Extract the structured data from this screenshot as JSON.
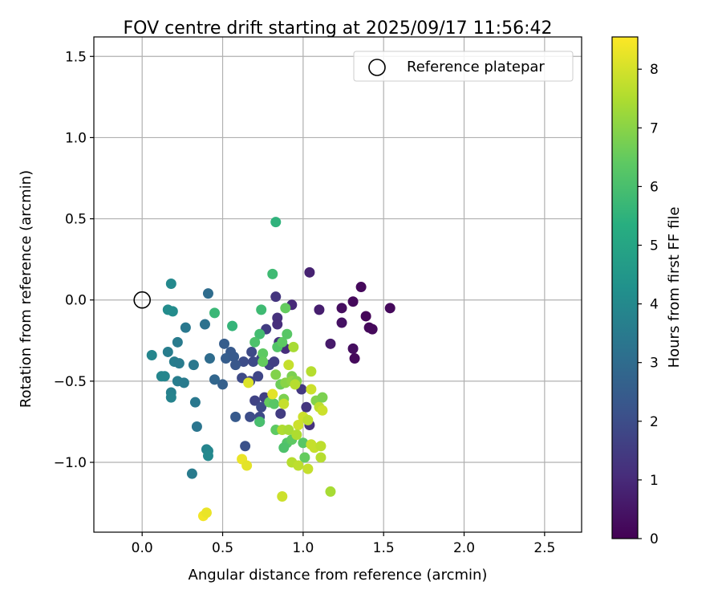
{
  "chart_data": {
    "type": "scatter",
    "title": "FOV centre drift starting at 2025/09/17 11:56:42",
    "xlabel": "Angular distance from reference (arcmin)",
    "ylabel": "Rotation from reference (arcmin)",
    "xlim": [
      -0.3,
      2.73
    ],
    "ylim": [
      -1.43,
      1.62
    ],
    "xticks": [
      0.0,
      0.5,
      1.0,
      1.5,
      2.0,
      2.5
    ],
    "xtick_labels": [
      "0.0",
      "0.5",
      "1.0",
      "1.5",
      "2.0",
      "2.5"
    ],
    "yticks": [
      -1.0,
      -0.5,
      0.0,
      0.5,
      1.0,
      1.5
    ],
    "ytick_labels": [
      "−1.0",
      "−0.5",
      "0.0",
      "0.5",
      "1.0",
      "1.5"
    ],
    "grid": true,
    "legend": {
      "position": "top-right",
      "entries": [
        {
          "label": "Reference platepar",
          "marker": "open-circle"
        }
      ]
    },
    "reference_point": {
      "x": 0.0,
      "y": 0.0
    },
    "colorbar": {
      "label": "Hours from first FF file",
      "range": [
        0,
        8.55
      ],
      "ticks": [
        0,
        1,
        2,
        3,
        4,
        5,
        6,
        7,
        8
      ],
      "tick_labels": [
        "0",
        "1",
        "2",
        "3",
        "4",
        "5",
        "6",
        "7",
        "8"
      ],
      "colormap": "viridis"
    },
    "points": [
      {
        "x": 1.31,
        "y": -0.01,
        "t": 0.2
      },
      {
        "x": 1.36,
        "y": 0.08,
        "t": 0.2
      },
      {
        "x": 1.39,
        "y": -0.1,
        "t": 0.1
      },
      {
        "x": 1.41,
        "y": -0.17,
        "t": 0.2
      },
      {
        "x": 1.43,
        "y": -0.18,
        "t": 0.2
      },
      {
        "x": 1.54,
        "y": -0.05,
        "t": 0.2
      },
      {
        "x": 1.24,
        "y": -0.05,
        "t": 0.3
      },
      {
        "x": 1.24,
        "y": -0.14,
        "t": 0.4
      },
      {
        "x": 1.31,
        "y": -0.3,
        "t": 0.3
      },
      {
        "x": 1.32,
        "y": -0.36,
        "t": 0.2
      },
      {
        "x": 1.17,
        "y": -0.27,
        "t": 0.6
      },
      {
        "x": 1.1,
        "y": -0.06,
        "t": 0.7
      },
      {
        "x": 1.04,
        "y": 0.17,
        "t": 0.8
      },
      {
        "x": 0.93,
        "y": -0.03,
        "t": 1.0
      },
      {
        "x": 0.83,
        "y": 0.02,
        "t": 1.3
      },
      {
        "x": 0.84,
        "y": -0.11,
        "t": 1.2
      },
      {
        "x": 0.84,
        "y": -0.15,
        "t": 1.1
      },
      {
        "x": 0.77,
        "y": -0.18,
        "t": 1.5
      },
      {
        "x": 0.89,
        "y": -0.3,
        "t": 1.1
      },
      {
        "x": 0.85,
        "y": -0.26,
        "t": 1.2
      },
      {
        "x": 0.79,
        "y": -0.4,
        "t": 1.7
      },
      {
        "x": 0.82,
        "y": -0.38,
        "t": 1.6
      },
      {
        "x": 0.74,
        "y": -0.36,
        "t": 1.8
      },
      {
        "x": 0.68,
        "y": -0.32,
        "t": 1.9
      },
      {
        "x": 0.63,
        "y": -0.38,
        "t": 2.0
      },
      {
        "x": 0.69,
        "y": -0.38,
        "t": 1.9
      },
      {
        "x": 0.72,
        "y": -0.47,
        "t": 1.8
      },
      {
        "x": 0.62,
        "y": -0.48,
        "t": 1.9
      },
      {
        "x": 0.67,
        "y": -0.5,
        "t": 1.8
      },
      {
        "x": 0.7,
        "y": -0.62,
        "t": 1.7
      },
      {
        "x": 0.74,
        "y": -0.66,
        "t": 1.9
      },
      {
        "x": 0.76,
        "y": -0.6,
        "t": 1.6
      },
      {
        "x": 0.86,
        "y": -0.7,
        "t": 1.5
      },
      {
        "x": 0.73,
        "y": -0.72,
        "t": 1.9
      },
      {
        "x": 0.67,
        "y": -0.72,
        "t": 2.0
      },
      {
        "x": 0.73,
        "y": -0.75,
        "t": 1.8
      },
      {
        "x": 0.64,
        "y": -0.9,
        "t": 2.1
      },
      {
        "x": 1.02,
        "y": -0.66,
        "t": 1.3
      },
      {
        "x": 1.04,
        "y": -0.77,
        "t": 1.2
      },
      {
        "x": 0.99,
        "y": -0.55,
        "t": 1.4
      },
      {
        "x": 0.55,
        "y": -0.32,
        "t": 2.4
      },
      {
        "x": 0.51,
        "y": -0.27,
        "t": 2.5
      },
      {
        "x": 0.52,
        "y": -0.36,
        "t": 2.5
      },
      {
        "x": 0.57,
        "y": -0.35,
        "t": 2.4
      },
      {
        "x": 0.58,
        "y": -0.4,
        "t": 2.3
      },
      {
        "x": 0.5,
        "y": -0.52,
        "t": 2.6
      },
      {
        "x": 0.58,
        "y": -0.72,
        "t": 2.4
      },
      {
        "x": 0.45,
        "y": -0.49,
        "t": 2.8
      },
      {
        "x": 0.42,
        "y": -0.36,
        "t": 3.0
      },
      {
        "x": 0.41,
        "y": 0.04,
        "t": 3.0
      },
      {
        "x": 0.39,
        "y": -0.15,
        "t": 3.2
      },
      {
        "x": 0.27,
        "y": -0.17,
        "t": 3.4
      },
      {
        "x": 0.22,
        "y": -0.26,
        "t": 3.5
      },
      {
        "x": 0.16,
        "y": -0.32,
        "t": 3.6
      },
      {
        "x": 0.2,
        "y": -0.38,
        "t": 3.6
      },
      {
        "x": 0.23,
        "y": -0.39,
        "t": 3.5
      },
      {
        "x": 0.32,
        "y": -0.4,
        "t": 3.4
      },
      {
        "x": 0.06,
        "y": -0.34,
        "t": 3.9
      },
      {
        "x": 0.12,
        "y": -0.47,
        "t": 3.9
      },
      {
        "x": 0.14,
        "y": -0.47,
        "t": 3.9
      },
      {
        "x": 0.22,
        "y": -0.5,
        "t": 3.6
      },
      {
        "x": 0.26,
        "y": -0.51,
        "t": 3.5
      },
      {
        "x": 0.18,
        "y": -0.57,
        "t": 3.7
      },
      {
        "x": 0.18,
        "y": -0.6,
        "t": 3.8
      },
      {
        "x": 0.33,
        "y": -0.63,
        "t": 3.4
      },
      {
        "x": 0.34,
        "y": -0.78,
        "t": 3.3
      },
      {
        "x": 0.4,
        "y": -0.92,
        "t": 3.8
      },
      {
        "x": 0.41,
        "y": -0.93,
        "t": 3.9
      },
      {
        "x": 0.41,
        "y": -0.96,
        "t": 4.0
      },
      {
        "x": 0.31,
        "y": -1.07,
        "t": 3.5
      },
      {
        "x": 0.18,
        "y": 0.1,
        "t": 4.0
      },
      {
        "x": 0.16,
        "y": -0.06,
        "t": 4.1
      },
      {
        "x": 0.19,
        "y": -0.07,
        "t": 4.1
      },
      {
        "x": 0.45,
        "y": -0.08,
        "t": 5.7
      },
      {
        "x": 0.56,
        "y": -0.16,
        "t": 5.6
      },
      {
        "x": 0.83,
        "y": 0.48,
        "t": 5.5
      },
      {
        "x": 0.81,
        "y": 0.16,
        "t": 5.8
      },
      {
        "x": 0.74,
        "y": -0.06,
        "t": 5.8
      },
      {
        "x": 0.89,
        "y": -0.05,
        "t": 6.5
      },
      {
        "x": 0.73,
        "y": -0.21,
        "t": 5.9
      },
      {
        "x": 0.7,
        "y": -0.26,
        "t": 6.1
      },
      {
        "x": 0.84,
        "y": -0.29,
        "t": 6.2
      },
      {
        "x": 0.87,
        "y": -0.26,
        "t": 6.4
      },
      {
        "x": 0.9,
        "y": -0.21,
        "t": 6.3
      },
      {
        "x": 0.75,
        "y": -0.33,
        "t": 6.4
      },
      {
        "x": 0.75,
        "y": -0.38,
        "t": 6.5
      },
      {
        "x": 0.83,
        "y": -0.46,
        "t": 6.9
      },
      {
        "x": 0.86,
        "y": -0.52,
        "t": 6.6
      },
      {
        "x": 0.89,
        "y": -0.51,
        "t": 7.0
      },
      {
        "x": 0.93,
        "y": -0.47,
        "t": 6.8
      },
      {
        "x": 0.93,
        "y": -0.5,
        "t": 7.1
      },
      {
        "x": 0.96,
        "y": -0.5,
        "t": 6.9
      },
      {
        "x": 0.79,
        "y": -0.63,
        "t": 6.5
      },
      {
        "x": 0.82,
        "y": -0.64,
        "t": 6.3
      },
      {
        "x": 0.88,
        "y": -0.61,
        "t": 6.8
      },
      {
        "x": 0.73,
        "y": -0.75,
        "t": 6.0
      },
      {
        "x": 0.83,
        "y": -0.8,
        "t": 6.4
      },
      {
        "x": 0.9,
        "y": -0.88,
        "t": 6.2
      },
      {
        "x": 0.93,
        "y": -0.86,
        "t": 6.4
      },
      {
        "x": 0.88,
        "y": -0.91,
        "t": 6.1
      },
      {
        "x": 1.0,
        "y": -0.88,
        "t": 6.3
      },
      {
        "x": 1.01,
        "y": -0.97,
        "t": 6.5
      },
      {
        "x": 1.08,
        "y": -0.62,
        "t": 6.9
      },
      {
        "x": 1.12,
        "y": -0.6,
        "t": 6.8
      },
      {
        "x": 0.94,
        "y": -0.29,
        "t": 7.4
      },
      {
        "x": 0.91,
        "y": -0.4,
        "t": 7.8
      },
      {
        "x": 0.95,
        "y": -0.52,
        "t": 7.6
      },
      {
        "x": 1.05,
        "y": -0.44,
        "t": 7.6
      },
      {
        "x": 1.05,
        "y": -0.55,
        "t": 7.9
      },
      {
        "x": 0.88,
        "y": -0.64,
        "t": 7.8
      },
      {
        "x": 0.87,
        "y": -0.8,
        "t": 7.5
      },
      {
        "x": 0.91,
        "y": -0.8,
        "t": 7.4
      },
      {
        "x": 0.97,
        "y": -0.77,
        "t": 7.9
      },
      {
        "x": 1.0,
        "y": -0.72,
        "t": 7.9
      },
      {
        "x": 1.03,
        "y": -0.74,
        "t": 7.7
      },
      {
        "x": 1.1,
        "y": -0.66,
        "t": 7.7
      },
      {
        "x": 1.12,
        "y": -0.68,
        "t": 7.9
      },
      {
        "x": 0.96,
        "y": -0.83,
        "t": 7.5
      },
      {
        "x": 1.05,
        "y": -0.89,
        "t": 7.8
      },
      {
        "x": 1.07,
        "y": -0.91,
        "t": 7.8
      },
      {
        "x": 1.11,
        "y": -0.9,
        "t": 7.7
      },
      {
        "x": 1.11,
        "y": -0.97,
        "t": 7.6
      },
      {
        "x": 0.93,
        "y": -1.0,
        "t": 7.6
      },
      {
        "x": 0.97,
        "y": -1.02,
        "t": 7.7
      },
      {
        "x": 1.03,
        "y": -1.04,
        "t": 7.8
      },
      {
        "x": 1.17,
        "y": -1.18,
        "t": 7.4
      },
      {
        "x": 0.87,
        "y": -1.21,
        "t": 7.9
      },
      {
        "x": 0.81,
        "y": -0.58,
        "t": 8.2
      },
      {
        "x": 0.66,
        "y": -0.51,
        "t": 8.1
      },
      {
        "x": 0.62,
        "y": -0.98,
        "t": 8.3
      },
      {
        "x": 0.65,
        "y": -1.02,
        "t": 8.2
      },
      {
        "x": 0.38,
        "y": -1.33,
        "t": 8.4
      },
      {
        "x": 0.4,
        "y": -1.31,
        "t": 8.3
      }
    ]
  }
}
